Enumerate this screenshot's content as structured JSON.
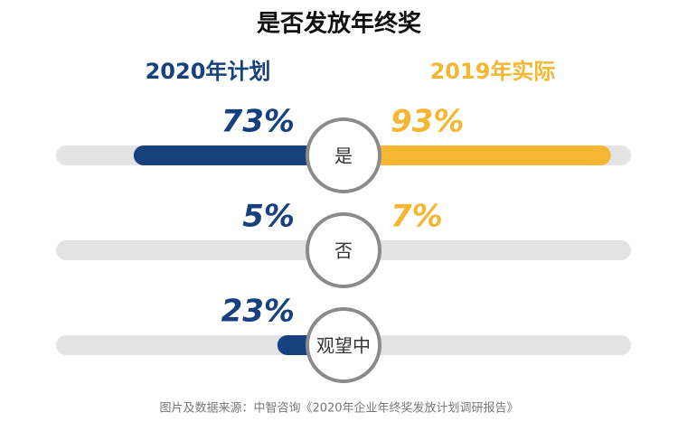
{
  "chart_data": {
    "type": "butterfly",
    "title": "是否发放年终奖",
    "categories": [
      "是",
      "否",
      "观望中"
    ],
    "series": [
      {
        "name": "2020年计划",
        "color": "#17407e",
        "values": [
          73,
          5,
          23
        ],
        "value_labels": [
          "73%",
          "5%",
          "23%"
        ]
      },
      {
        "name": "2019年实际",
        "color": "#f5b731",
        "values": [
          93,
          7,
          null
        ],
        "value_labels": [
          "93%",
          "7%",
          null
        ]
      }
    ],
    "xlim": [
      0,
      100
    ],
    "source": "图片及数据来源：中智咨询《2020年企业年终奖发放计划调研报告》"
  }
}
